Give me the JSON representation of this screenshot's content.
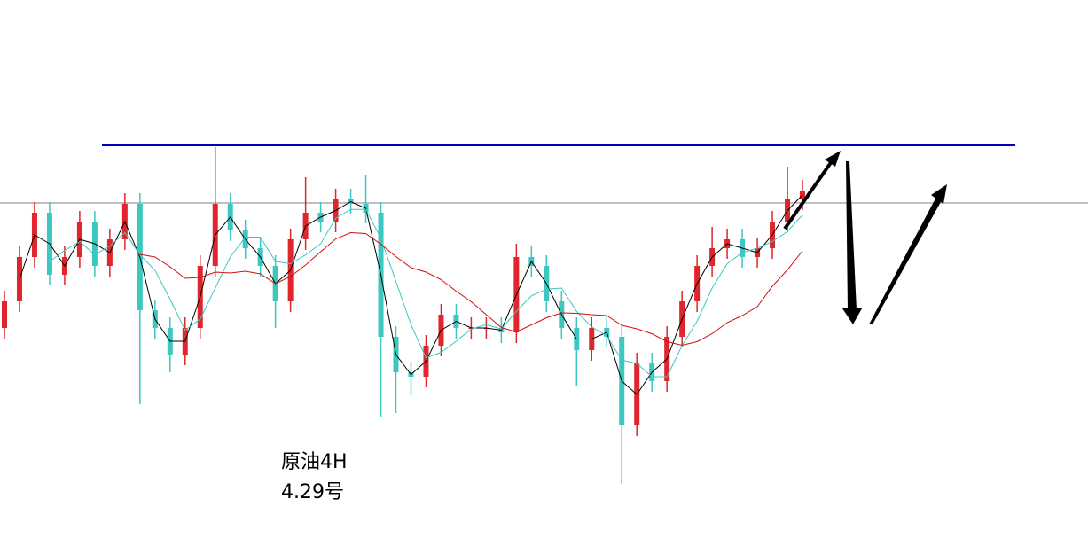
{
  "chart_data": {
    "type": "candlestick",
    "annotation_lines": [
      "原油4H",
      "4.29号"
    ],
    "ylim": [
      0,
      616
    ],
    "up_color": "#e0262c",
    "down_color": "#3cc8c0",
    "levels": [
      {
        "value": 452,
        "color": "#0000c0"
      },
      {
        "value": 387,
        "color": "#808080"
      }
    ],
    "moving_averages": [
      {
        "period": 2,
        "color": "#000000"
      },
      {
        "period": 4,
        "color": "#3cc8c0"
      },
      {
        "period": 10,
        "color": "#d01010"
      }
    ],
    "candles": [
      [
        246,
        288,
        234,
        276
      ],
      [
        276,
        338,
        264,
        326
      ],
      [
        326,
        388,
        314,
        376
      ],
      [
        376,
        388,
        294,
        306
      ],
      [
        306,
        338,
        294,
        326
      ],
      [
        326,
        378,
        314,
        366
      ],
      [
        366,
        378,
        304,
        316
      ],
      [
        316,
        358,
        304,
        346
      ],
      [
        346,
        398,
        334,
        386
      ],
      [
        386,
        398,
        160,
        266
      ],
      [
        266,
        278,
        234,
        246
      ],
      [
        246,
        258,
        196,
        216
      ],
      [
        216,
        258,
        204,
        246
      ],
      [
        246,
        328,
        234,
        316
      ],
      [
        316,
        450,
        304,
        386
      ],
      [
        386,
        398,
        344,
        356
      ],
      [
        356,
        368,
        324,
        336
      ],
      [
        336,
        348,
        304,
        316
      ],
      [
        316,
        328,
        246,
        276
      ],
      [
        276,
        358,
        264,
        346
      ],
      [
        346,
        416,
        334,
        376
      ],
      [
        376,
        388,
        354,
        366
      ],
      [
        366,
        403,
        354,
        391
      ],
      [
        391,
        403,
        374,
        386
      ],
      [
        386,
        418,
        364,
        376
      ],
      [
        376,
        388,
        146,
        236
      ],
      [
        236,
        248,
        150,
        196
      ],
      [
        196,
        208,
        170,
        191
      ],
      [
        191,
        238,
        179,
        226
      ],
      [
        226,
        273,
        214,
        261
      ],
      [
        261,
        273,
        234,
        246
      ],
      [
        246,
        258,
        234,
        246
      ],
      [
        246,
        258,
        234,
        246
      ],
      [
        246,
        258,
        229,
        241
      ],
      [
        241,
        341,
        229,
        326
      ],
      [
        326,
        338,
        304,
        316
      ],
      [
        316,
        328,
        264,
        276
      ],
      [
        276,
        288,
        234,
        246
      ],
      [
        246,
        258,
        180,
        221
      ],
      [
        221,
        258,
        209,
        246
      ],
      [
        246,
        258,
        224,
        236
      ],
      [
        236,
        248,
        70,
        136
      ],
      [
        136,
        218,
        124,
        206
      ],
      [
        206,
        218,
        174,
        186
      ],
      [
        186,
        248,
        174,
        236
      ],
      [
        236,
        288,
        224,
        276
      ],
      [
        276,
        328,
        264,
        316
      ],
      [
        316,
        360,
        304,
        336
      ],
      [
        336,
        358,
        324,
        346
      ],
      [
        346,
        358,
        314,
        326
      ],
      [
        326,
        348,
        314,
        336
      ],
      [
        336,
        378,
        324,
        366
      ],
      [
        366,
        428,
        354,
        391
      ],
      [
        391,
        413,
        379,
        401
      ]
    ]
  }
}
